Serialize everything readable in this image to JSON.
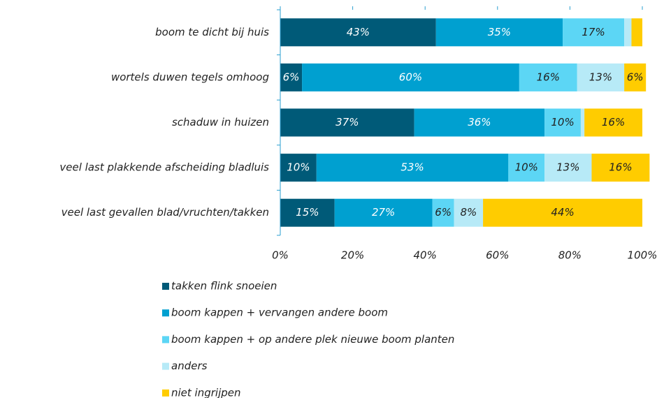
{
  "chart_data": {
    "type": "stacked-barh",
    "categories": [
      "boom te dicht bij huis",
      "wortels duwen tegels omhoog",
      "schaduw in huizen",
      "veel last plakkende afscheiding bladluis",
      "veel last gevallen blad/vruchten/takken"
    ],
    "series": [
      {
        "name": "takken flink snoeien",
        "color": "#005a78",
        "values": [
          43,
          6,
          37,
          10,
          15
        ],
        "value_labels": [
          "43%",
          "6%",
          "37%",
          "10%",
          "15%"
        ]
      },
      {
        "name": "boom kappen + vervangen andere boom",
        "color": "#00a0d0",
        "values": [
          35,
          60,
          36,
          53,
          27
        ],
        "value_labels": [
          "35%",
          "60%",
          "36%",
          "53%",
          "27%"
        ]
      },
      {
        "name": "boom kappen + op andere plek nieuwe boom planten",
        "color": "#5cd6f5",
        "values": [
          17,
          16,
          10,
          10,
          6
        ],
        "value_labels": [
          "17%",
          "16%",
          "10%",
          "10%",
          "6%"
        ]
      },
      {
        "name": "anders",
        "color": "#b7eaf7",
        "values": [
          2,
          13,
          1,
          13,
          8
        ],
        "value_labels": [
          null,
          "13%",
          null,
          "13%",
          "8%"
        ]
      },
      {
        "name": "niet ingrijpen",
        "color": "#ffcc00",
        "values": [
          3,
          6,
          16,
          16,
          44
        ],
        "value_labels": [
          null,
          "6%",
          "16%",
          "16%",
          "44%"
        ]
      }
    ],
    "xlim": [
      0,
      100
    ],
    "xticks": [
      {
        "value": 0,
        "label": "0%"
      },
      {
        "value": 20,
        "label": "20%"
      },
      {
        "value": 40,
        "label": "40%"
      },
      {
        "value": 60,
        "label": "60%"
      },
      {
        "value": 80,
        "label": "80%"
      },
      {
        "value": 100,
        "label": "100%"
      }
    ]
  }
}
